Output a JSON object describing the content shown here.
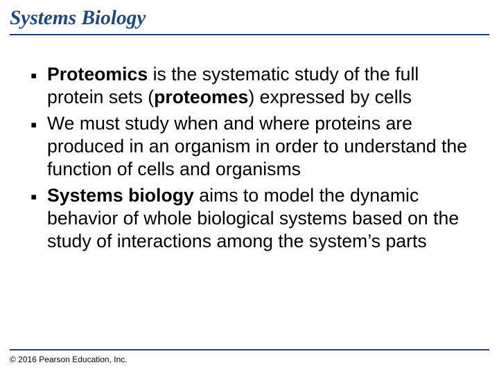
{
  "title": {
    "text": "Systems Biology",
    "color": "#1f497d",
    "fontsize_pt": 22,
    "font_family": "Times New Roman",
    "font_style": "italic",
    "font_weight": "bold"
  },
  "divider_color": "#1f3f6e",
  "background_color": "#ffffff",
  "bullets": {
    "marker": "▪",
    "marker_color": "#000000",
    "text_color": "#000000",
    "fontsize_pt": 20,
    "line_height": 1.25,
    "items": [
      {
        "runs": [
          {
            "text": "Proteomics",
            "bold": true
          },
          {
            "text": " is the systematic study of the full protein sets (",
            "bold": false
          },
          {
            "text": "proteomes",
            "bold": true
          },
          {
            "text": ") expressed by cells",
            "bold": false
          }
        ]
      },
      {
        "runs": [
          {
            "text": "We must study when and where proteins are produced in an organism in order to understand the function of cells and organisms",
            "bold": false
          }
        ]
      },
      {
        "runs": [
          {
            "text": "Systems biology",
            "bold": true
          },
          {
            "text": " aims to model the dynamic behavior of whole biological systems based on the study of interactions among the system’s parts",
            "bold": false
          }
        ]
      }
    ]
  },
  "copyright": {
    "text": "© 2016 Pearson Education, Inc.",
    "fontsize_pt": 9,
    "color": "#000000"
  }
}
